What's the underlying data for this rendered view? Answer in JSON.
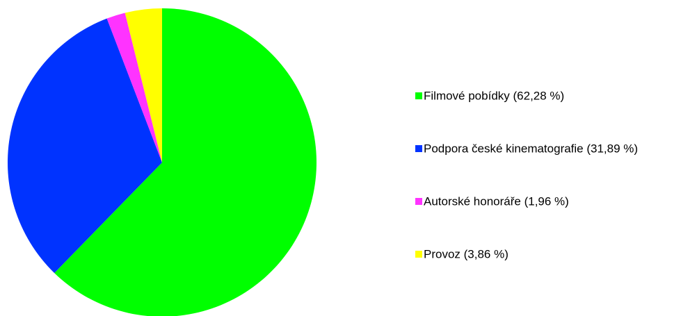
{
  "chart_data": {
    "type": "pie",
    "categories": [
      "Filmové pobídky (62,28 %)",
      "Podpora české kinematografie (31,89 %)",
      "Autorské honoráře (1,96 %)",
      "Provoz (3,86 %)"
    ],
    "values": [
      62.28,
      31.89,
      1.96,
      3.86
    ],
    "colors": [
      "#00ff00",
      "#0033ff",
      "#ff33ff",
      "#ffff00"
    ],
    "legend": "right"
  }
}
